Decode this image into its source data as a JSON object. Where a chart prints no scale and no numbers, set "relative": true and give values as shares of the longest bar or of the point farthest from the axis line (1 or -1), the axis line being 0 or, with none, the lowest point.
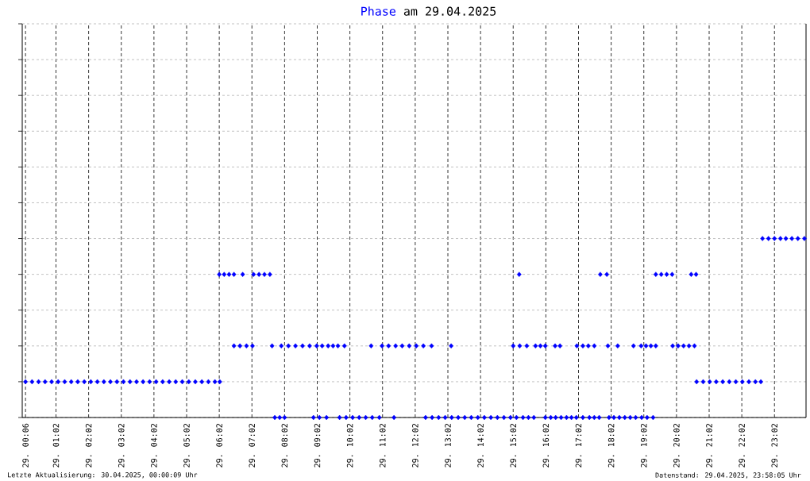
{
  "chart_data": {
    "type": "scatter",
    "title": "am 29.04.2025",
    "annotations": [
      "Letzte Aktualisierung: 30.04.2025, 00:00:09 Uhr",
      "Datenstand: 29.04.2025, 23:58:05 Uhr"
    ],
    "relative": true,
    "marker": "diamond",
    "grid": true,
    "xlim": [
      "2025-04-29T00:00",
      "2025-04-30T00:00"
    ],
    "xticks": [
      {
        "value": "2025-04-29T00:06",
        "label": "29. 00:06"
      },
      {
        "value": "2025-04-29T01:02",
        "label": "29. 01:02"
      },
      {
        "value": "2025-04-29T02:02",
        "label": "29. 02:02"
      },
      {
        "value": "2025-04-29T03:02",
        "label": "29. 03:02"
      },
      {
        "value": "2025-04-29T04:02",
        "label": "29. 04:02"
      },
      {
        "value": "2025-04-29T05:02",
        "label": "29. 05:02"
      },
      {
        "value": "2025-04-29T06:02",
        "label": "29. 06:02"
      },
      {
        "value": "2025-04-29T07:02",
        "label": "29. 07:02"
      },
      {
        "value": "2025-04-29T08:02",
        "label": "29. 08:02"
      },
      {
        "value": "2025-04-29T09:02",
        "label": "29. 09:02"
      },
      {
        "value": "2025-04-29T10:02",
        "label": "29. 10:02"
      },
      {
        "value": "2025-04-29T11:02",
        "label": "29. 11:02"
      },
      {
        "value": "2025-04-29T12:02",
        "label": "29. 12:02"
      },
      {
        "value": "2025-04-29T13:02",
        "label": "29. 13:02"
      },
      {
        "value": "2025-04-29T14:02",
        "label": "29. 14:02"
      },
      {
        "value": "2025-04-29T15:02",
        "label": "29. 15:02"
      },
      {
        "value": "2025-04-29T16:02",
        "label": "29. 16:02"
      },
      {
        "value": "2025-04-29T17:02",
        "label": "29. 17:02"
      },
      {
        "value": "2025-04-29T18:02",
        "label": "29. 18:02"
      },
      {
        "value": "2025-04-29T19:02",
        "label": "29. 19:02"
      },
      {
        "value": "2025-04-29T20:02",
        "label": "29. 20:02"
      },
      {
        "value": "2025-04-29T21:02",
        "label": "29. 21:02"
      },
      {
        "value": "2025-04-29T22:02",
        "label": "29. 22:02"
      },
      {
        "value": "2025-04-29T23:02",
        "label": "29. 23:02"
      }
    ],
    "series": [
      {
        "name": "Phase",
        "color": "#0000ff",
        "x": [
          "2025-04-29T00:06",
          "2025-04-29T00:18",
          "2025-04-29T00:30",
          "2025-04-29T00:42",
          "2025-04-29T00:54",
          "2025-04-29T01:06",
          "2025-04-29T01:18",
          "2025-04-29T01:30",
          "2025-04-29T01:42",
          "2025-04-29T01:54",
          "2025-04-29T02:06",
          "2025-04-29T02:18",
          "2025-04-29T02:30",
          "2025-04-29T02:42",
          "2025-04-29T02:54",
          "2025-04-29T03:06",
          "2025-04-29T03:18",
          "2025-04-29T03:30",
          "2025-04-29T03:42",
          "2025-04-29T03:54",
          "2025-04-29T04:06",
          "2025-04-29T04:18",
          "2025-04-29T04:30",
          "2025-04-29T04:42",
          "2025-04-29T04:54",
          "2025-04-29T05:06",
          "2025-04-29T05:18",
          "2025-04-29T05:30",
          "2025-04-29T05:42",
          "2025-04-29T05:54",
          "2025-04-29T06:03",
          "2025-04-29T20:39",
          "2025-04-29T20:51",
          "2025-04-29T21:03",
          "2025-04-29T21:15",
          "2025-04-29T21:27",
          "2025-04-29T21:39",
          "2025-04-29T21:51",
          "2025-04-29T22:03",
          "2025-04-29T22:15",
          "2025-04-29T22:27",
          "2025-04-29T22:37",
          "2025-04-29T06:02",
          "2025-04-29T06:11",
          "2025-04-29T06:20",
          "2025-04-29T06:29",
          "2025-04-29T06:45",
          "2025-04-29T07:05",
          "2025-04-29T07:15",
          "2025-04-29T07:25",
          "2025-04-29T07:35",
          "2025-04-29T15:13",
          "2025-04-29T17:42",
          "2025-04-29T17:54",
          "2025-04-29T19:24",
          "2025-04-29T19:34",
          "2025-04-29T19:44",
          "2025-04-29T19:54",
          "2025-04-29T20:29",
          "2025-04-29T20:38",
          "2025-04-29T22:40",
          "2025-04-29T22:51",
          "2025-04-29T23:02",
          "2025-04-29T23:13",
          "2025-04-29T23:23",
          "2025-04-29T23:34",
          "2025-04-29T23:45",
          "2025-04-29T23:57",
          "2025-04-29T06:29",
          "2025-04-29T06:40",
          "2025-04-29T06:52",
          "2025-04-29T07:03",
          "2025-04-29T07:39",
          "2025-04-29T07:56",
          "2025-04-29T08:09",
          "2025-04-29T08:22",
          "2025-04-29T08:35",
          "2025-04-29T08:48",
          "2025-04-29T09:01",
          "2025-04-29T09:11",
          "2025-04-29T09:22",
          "2025-04-29T09:31",
          "2025-04-29T09:40",
          "2025-04-29T09:52",
          "2025-04-29T10:41",
          "2025-04-29T11:01",
          "2025-04-29T11:13",
          "2025-04-29T11:26",
          "2025-04-29T11:38",
          "2025-04-29T11:51",
          "2025-04-29T12:04",
          "2025-04-29T12:17",
          "2025-04-29T12:32",
          "2025-04-29T13:08",
          "2025-04-29T15:02",
          "2025-04-29T15:14",
          "2025-04-29T15:27",
          "2025-04-29T15:43",
          "2025-04-29T15:52",
          "2025-04-29T16:01",
          "2025-04-29T16:19",
          "2025-04-29T16:28",
          "2025-04-29T16:59",
          "2025-04-29T17:10",
          "2025-04-29T17:20",
          "2025-04-29T17:31",
          "2025-04-29T17:56",
          "2025-04-29T18:14",
          "2025-04-29T18:43",
          "2025-04-29T18:57",
          "2025-04-29T19:06",
          "2025-04-29T19:15",
          "2025-04-29T19:24",
          "2025-04-29T19:55",
          "2025-04-29T20:05",
          "2025-04-29T20:15",
          "2025-04-29T20:25",
          "2025-04-29T20:35",
          "2025-04-29T07:44",
          "2025-04-29T07:53",
          "2025-04-29T08:02",
          "2025-04-29T08:55",
          "2025-04-29T09:06",
          "2025-04-29T09:19",
          "2025-04-29T09:43",
          "2025-04-29T09:55",
          "2025-04-29T10:07",
          "2025-04-29T10:19",
          "2025-04-29T10:31",
          "2025-04-29T10:43",
          "2025-04-29T10:56",
          "2025-04-29T11:23",
          "2025-04-29T12:21",
          "2025-04-29T12:33",
          "2025-04-29T12:45",
          "2025-04-29T12:57",
          "2025-04-29T13:09",
          "2025-04-29T13:21",
          "2025-04-29T13:33",
          "2025-04-29T13:45",
          "2025-04-29T13:57",
          "2025-04-29T14:09",
          "2025-04-29T14:21",
          "2025-04-29T14:33",
          "2025-04-29T14:45",
          "2025-04-29T14:57",
          "2025-04-29T15:08",
          "2025-04-29T15:20",
          "2025-04-29T15:30",
          "2025-04-29T15:40",
          "2025-04-29T16:01",
          "2025-04-29T16:11",
          "2025-04-29T16:20",
          "2025-04-29T16:30",
          "2025-04-29T16:40",
          "2025-04-29T16:49",
          "2025-04-29T16:58",
          "2025-04-29T17:10",
          "2025-04-29T17:22",
          "2025-04-29T17:31",
          "2025-04-29T17:40",
          "2025-04-29T17:58",
          "2025-04-29T18:07",
          "2025-04-29T18:17",
          "2025-04-29T18:27",
          "2025-04-29T18:37",
          "2025-04-29T18:47",
          "2025-04-29T18:58",
          "2025-04-29T19:08",
          "2025-04-29T19:19"
        ],
        "values": [
          0.2,
          0.2,
          0.2,
          0.2,
          0.2,
          0.2,
          0.2,
          0.2,
          0.2,
          0.2,
          0.2,
          0.2,
          0.2,
          0.2,
          0.2,
          0.2,
          0.2,
          0.2,
          0.2,
          0.2,
          0.2,
          0.2,
          0.2,
          0.2,
          0.2,
          0.2,
          0.2,
          0.2,
          0.2,
          0.2,
          0.2,
          0.2,
          0.2,
          0.2,
          0.2,
          0.2,
          0.2,
          0.2,
          0.2,
          0.2,
          0.2,
          0.2,
          0.8,
          0.8,
          0.8,
          0.8,
          0.8,
          0.8,
          0.8,
          0.8,
          0.8,
          0.8,
          0.8,
          0.8,
          0.8,
          0.8,
          0.8,
          0.8,
          0.8,
          0.8,
          1,
          1,
          1,
          1,
          1,
          1,
          1,
          1,
          0.4,
          0.4,
          0.4,
          0.4,
          0.4,
          0.4,
          0.4,
          0.4,
          0.4,
          0.4,
          0.4,
          0.4,
          0.4,
          0.4,
          0.4,
          0.4,
          0.4,
          0.4,
          0.4,
          0.4,
          0.4,
          0.4,
          0.4,
          0.4,
          0.4,
          0.4,
          0.4,
          0.4,
          0.4,
          0.4,
          0.4,
          0.4,
          0.4,
          0.4,
          0.4,
          0.4,
          0.4,
          0.4,
          0.4,
          0.4,
          0.4,
          0.4,
          0.4,
          0.4,
          0.4,
          0.4,
          0.4,
          0.4,
          0.4,
          0.4,
          0,
          0,
          0,
          0,
          0,
          0,
          0,
          0,
          0,
          0,
          0,
          0,
          0,
          0,
          0,
          0,
          0,
          0,
          0,
          0,
          0,
          0,
          0,
          0,
          0,
          0,
          0,
          0,
          0,
          0,
          0,
          0,
          0,
          0,
          0,
          0,
          0,
          0,
          0,
          0,
          0,
          0,
          0,
          0,
          0,
          0,
          0,
          0,
          0,
          0,
          0,
          0
        ]
      }
    ]
  }
}
